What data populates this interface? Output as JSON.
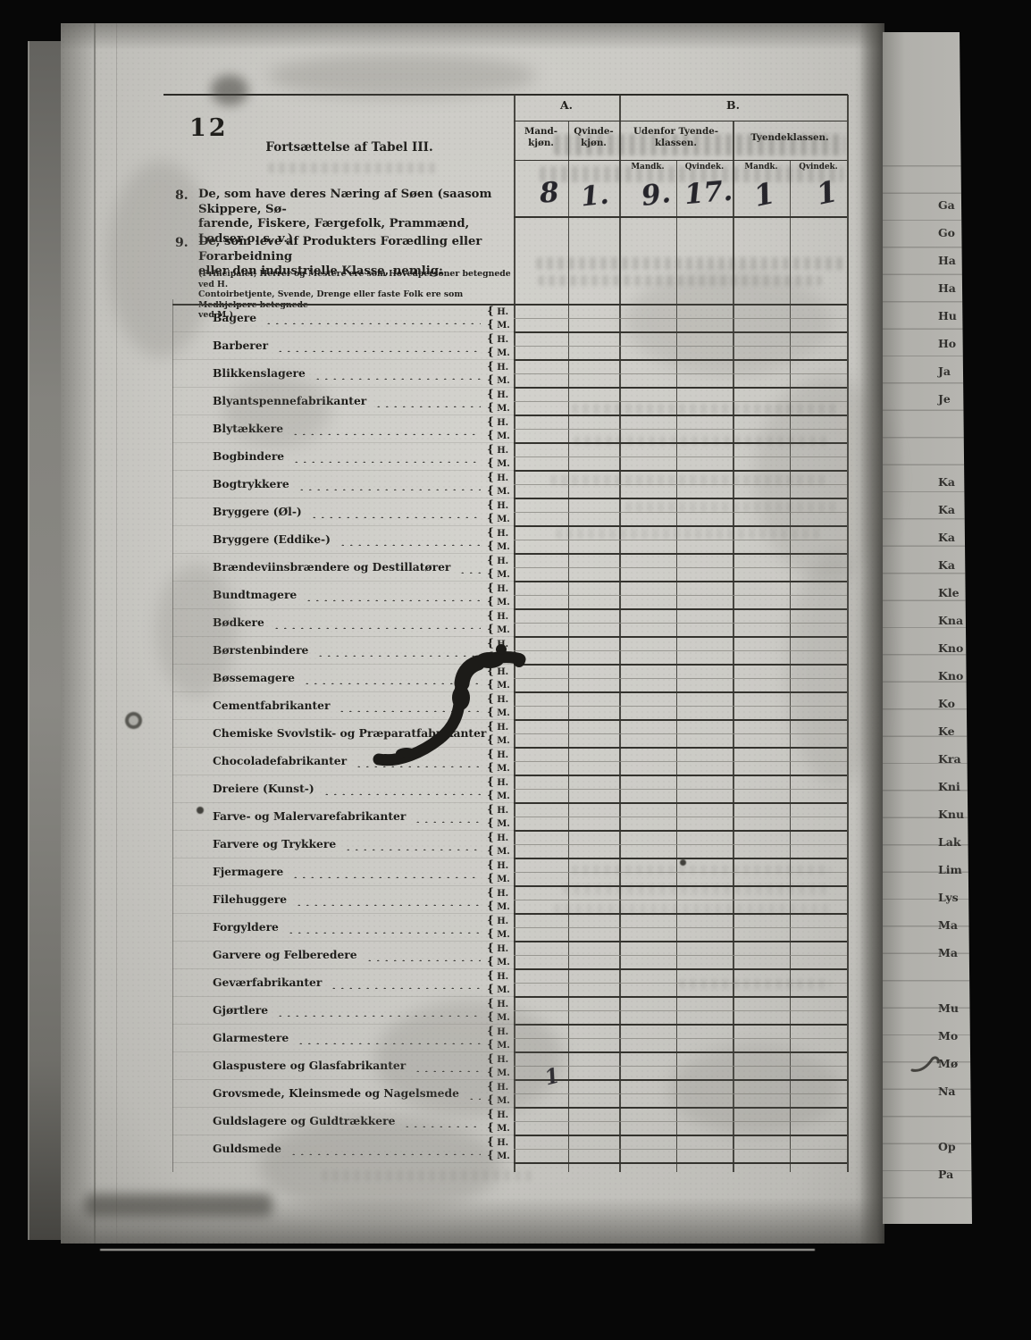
{
  "page": {
    "number": "12",
    "title": "Fortsættelse af Tabel III.",
    "item8": {
      "no": "8.",
      "line1": "De, som have deres Næring af Søen (saasom Skippere, Sø-",
      "line2": "farende, Fiskere, Færgefolk, Prammænd, Lodser o. s. v.)"
    },
    "item9": {
      "no": "9.",
      "line1": "De, som leve af Produkters Forædling eller Forarbeidning",
      "line2": "eller den industrielle Klasse, nemlig:"
    },
    "note_lines": [
      "(Principaler, Herrer og Mestere ere som Hovedpersoner betegnede ved H.",
      "Contoirbetjente, Svende, Drenge eller faste Folk ere som Medhjelpere betegnede",
      "ved M.)"
    ]
  },
  "table": {
    "headers": {
      "a": "A.",
      "b": "B.",
      "mand_line1": "Mand-",
      "mand_line2": "kjøn.",
      "qvinde_line1": "Qvinde-",
      "qvinde_line2": "kjøn.",
      "udenfor_line1": "Udenfor Tyende-",
      "udenfor_line2": "klassen.",
      "tyende": "Tyendeklassen.",
      "sub": [
        "Mandk.",
        "Qvindek.",
        "Mandk.",
        "Qvindek."
      ]
    },
    "row8_values": [
      "8",
      "1.",
      "9.",
      "17.",
      "1",
      "1"
    ],
    "brace": "{",
    "marker_top": "H.",
    "marker_bottom": "M.",
    "occupations": [
      "Bagere",
      "Barberer",
      "Blikkenslagere",
      "Blyantspennefabrikanter",
      "Blytækkere",
      "Bogbindere",
      "Bogtrykkere",
      "Bryggere (Øl-)",
      "Bryggere (Eddike-)",
      "Brændeviinsbrændere og Destillatører",
      "Bundtmagere",
      "Bødkere",
      "Børstenbindere",
      "Bøssemagere",
      "Cementfabrikanter",
      "Chemiske Svovlstik- og Præparatfabrikanter",
      "Chocoladefabrikanter",
      "Dreiere (Kunst-)",
      "Farve- og Malervarefabrikanter",
      "Farvere og Trykkere",
      "Fjermagere",
      "Filehuggere",
      "Forgyldere",
      "Garvere og Felberedere",
      "Geværfabrikanter",
      "Gjørtlere",
      "Glarmestere",
      "Glaspustere og Glasfabrikanter",
      "Grovsmede, Kleinsmede og Nagelsmede",
      "Guldslagere og Guldtrækkere",
      "Guldsmede"
    ],
    "grovsmede_value": "1"
  },
  "right_page_fragments": [
    "Ga",
    "Go",
    "Ha",
    "Ha",
    "Hu",
    "Ho",
    "Ja",
    "Je",
    "",
    "",
    "Ka",
    "Ka",
    "Ka",
    "Ka",
    "Kle",
    "Kna",
    "Kno",
    "Kno",
    "Ko",
    "Ke",
    "Kra",
    "Kni",
    "Knu",
    "Lak",
    "Lim",
    "Lys",
    "Ma",
    "Ma",
    "",
    "Mu",
    "Mo",
    "Mø",
    "Na",
    "",
    "Op",
    "Pa",
    ""
  ],
  "colors": {
    "background": "#070707",
    "paper": "#cbcac5",
    "paper_shadow": "#6f6e69",
    "ink": "#201f1c",
    "handwriting": "#26252b"
  }
}
